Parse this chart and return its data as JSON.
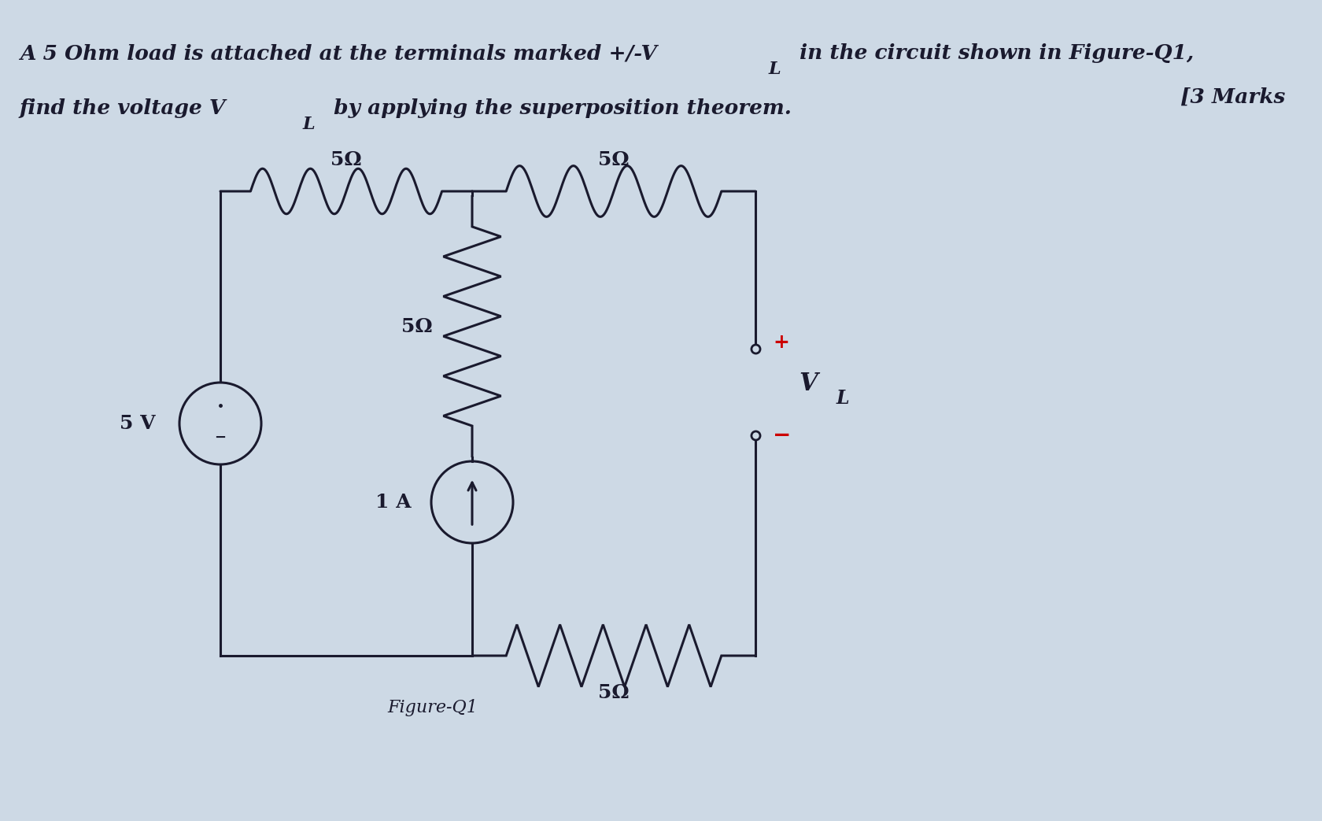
{
  "bg_color": "#cdd9e5",
  "line_color": "#1a1a2e",
  "resistor_label": "5Ω",
  "current_source_label": "1 A",
  "voltage_source_label": "5 V",
  "plus_color": "#cc0000",
  "minus_color": "#cc0000",
  "text_color": "#1a1a2e",
  "title_fontsize": 19,
  "label_fontsize": 18,
  "source_label_fontsize": 18,
  "figure_label_fontsize": 16,
  "wire_lw": 2.2,
  "component_lw": 2.2
}
